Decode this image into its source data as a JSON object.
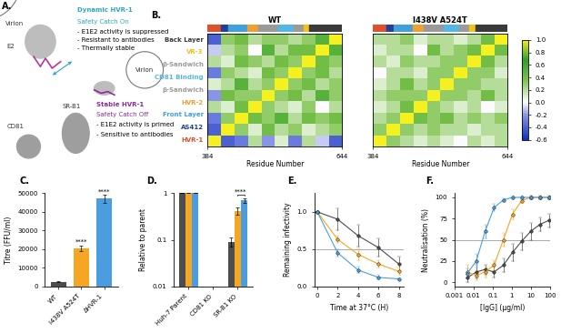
{
  "chart_data": [
    {
      "panel": "A.",
      "type": "diagram",
      "texts": [
        {
          "text": "Virion",
          "color": "#333333"
        },
        {
          "text": "E2",
          "color": "#333333"
        },
        {
          "text": "Dynamic HVR-1",
          "color": "#2aa7c9"
        },
        {
          "text": "Safety Catch On",
          "color": "#2aa7c9"
        },
        {
          "text": "- E1E2 activity is suppressed",
          "color": "#000000"
        },
        {
          "text": "- Resistant to antibodies",
          "color": "#000000"
        },
        {
          "text": "- Thermally stable",
          "color": "#000000"
        },
        {
          "text": "Virion",
          "color": "#333333"
        },
        {
          "text": "SR-B1",
          "color": "#333333"
        },
        {
          "text": "CD81",
          "color": "#333333"
        },
        {
          "text": "Stable HVR-1",
          "color": "#8e2a9e"
        },
        {
          "text": "Safety Catch Off",
          "color": "#8e2a9e"
        },
        {
          "text": "- E1E2 activity is primed",
          "color": "#000000"
        },
        {
          "text": "- Sensitive to antibodies",
          "color": "#000000"
        }
      ]
    },
    {
      "panel": "B.",
      "type": "heatmap",
      "xlabel": "Residue Number",
      "xlim": [
        384,
        644
      ],
      "xticks": [
        384,
        644
      ],
      "ylim": [
        384,
        644
      ],
      "tick_labels": "x",
      "regions": [
        {
          "name": "HVR-1",
          "color": "#e0502a",
          "start": 384,
          "end": 410
        },
        {
          "name": "AS412",
          "color": "#1f3f9a",
          "start": 410,
          "end": 424
        },
        {
          "name": "Front Layer",
          "color": "#3fa0de",
          "start": 424,
          "end": 460
        },
        {
          "name": "HVR-2",
          "color": "#f0a030",
          "start": 460,
          "end": 481
        },
        {
          "name": "β-Sandwich",
          "color": "#9a9a9a",
          "start": 481,
          "end": 520
        },
        {
          "name": "CD81 Binding",
          "color": "#52b6e6",
          "start": 520,
          "end": 551
        },
        {
          "name": "β-Sandwich",
          "color": "#9a9a9a",
          "start": 551,
          "end": 570
        },
        {
          "name": "VR-3",
          "color": "#f2c21a",
          "start": 570,
          "end": 581
        },
        {
          "name": "Back Layer",
          "color": "#3a3a3a",
          "start": 581,
          "end": 644
        }
      ],
      "maps": [
        {
          "title": "WT",
          "cells": [
            [
              1.0,
              -0.4,
              -0.3,
              0.2,
              -0.2,
              0.1,
              -0.3,
              0.2,
              -0.1,
              -0.4
            ],
            [
              -0.4,
              1.0,
              0.3,
              0.1,
              0.4,
              0.2,
              0.3,
              0.1,
              0.2,
              0.3
            ],
            [
              -0.3,
              0.3,
              1.0,
              0.4,
              0.3,
              0.5,
              0.2,
              0.4,
              0.3,
              0.4
            ],
            [
              0.2,
              0.1,
              0.4,
              1.0,
              0.3,
              0.2,
              0.1,
              0.3,
              0.0,
              0.2
            ],
            [
              -0.2,
              0.4,
              0.3,
              0.3,
              1.0,
              0.3,
              0.4,
              0.2,
              0.5,
              0.3
            ],
            [
              0.1,
              0.2,
              0.5,
              0.2,
              0.3,
              1.0,
              0.3,
              0.4,
              0.2,
              0.3
            ],
            [
              -0.3,
              0.3,
              0.2,
              0.1,
              0.4,
              0.3,
              1.0,
              0.3,
              0.4,
              0.2
            ],
            [
              0.2,
              0.1,
              0.4,
              0.3,
              0.2,
              0.4,
              0.3,
              1.0,
              0.4,
              0.3
            ],
            [
              -0.1,
              0.2,
              0.3,
              0.0,
              0.5,
              0.2,
              0.4,
              0.4,
              1.0,
              0.5
            ],
            [
              -0.4,
              0.3,
              0.4,
              0.2,
              0.3,
              0.3,
              0.2,
              0.3,
              0.5,
              1.0
            ]
          ]
        },
        {
          "title": "I438V A524T",
          "cells": [
            [
              1.0,
              0.3,
              0.2,
              0.1,
              0.2,
              0.1,
              0.0,
              0.2,
              0.1,
              0.2
            ],
            [
              0.3,
              1.0,
              0.3,
              0.2,
              0.3,
              0.2,
              0.2,
              0.1,
              0.2,
              0.2
            ],
            [
              0.2,
              0.3,
              1.0,
              0.4,
              0.3,
              0.4,
              0.2,
              0.3,
              0.2,
              0.3
            ],
            [
              0.1,
              0.2,
              0.4,
              1.0,
              0.3,
              0.2,
              0.1,
              0.2,
              0.0,
              0.1
            ],
            [
              0.2,
              0.3,
              0.3,
              0.3,
              1.0,
              0.3,
              0.3,
              0.2,
              0.4,
              0.2
            ],
            [
              0.1,
              0.2,
              0.4,
              0.2,
              0.3,
              1.0,
              0.3,
              0.3,
              0.2,
              0.2
            ],
            [
              0.0,
              0.2,
              0.2,
              0.1,
              0.3,
              0.3,
              1.0,
              0.3,
              0.3,
              0.1
            ],
            [
              0.2,
              0.1,
              0.3,
              0.2,
              0.2,
              0.3,
              0.3,
              1.0,
              0.4,
              0.2
            ],
            [
              0.1,
              0.2,
              0.2,
              0.0,
              0.4,
              0.2,
              0.3,
              0.4,
              1.0,
              0.4
            ],
            [
              0.2,
              0.2,
              0.3,
              0.1,
              0.2,
              0.2,
              0.1,
              0.2,
              0.4,
              1.0
            ]
          ]
        }
      ],
      "colorbar": {
        "range": [
          -0.6,
          1.0
        ],
        "ticks": [
          -0.6,
          -0.4,
          -0.2,
          {
            "value": 0,
            "label": "0.0"
          },
          0.2,
          0.4,
          0.6,
          0.8,
          1.0
        ]
      }
    },
    {
      "panel": "C.",
      "type": "bar",
      "ylabel": "Titre (FFU/ml)",
      "categories": [
        "WT",
        "I438V A524T",
        "ΔHVR-1"
      ],
      "values": [
        2500,
        20500,
        47000
      ],
      "errors": [
        300,
        1500,
        2000
      ],
      "colors": [
        "#4d4d4d",
        "#f5a623",
        "#4a9ee0"
      ],
      "ylim": [
        0,
        50000
      ],
      "yticks": [
        0,
        10000,
        20000,
        30000,
        40000,
        50000
      ],
      "annotations": [
        {
          "category": "I438V A524T",
          "text": "****"
        },
        {
          "category": "ΔHVR-1",
          "text": "****"
        }
      ]
    },
    {
      "panel": "D.",
      "type": "bar",
      "log": "y",
      "ylabel": "Relative to parent",
      "categories": [
        "Huh-7 Parent",
        "CD81 KO",
        "SR-B1 KO"
      ],
      "series": [
        {
          "name": "WT",
          "color": "#4d4d4d",
          "values": [
            1,
            null,
            0.09
          ],
          "errors": [
            0,
            null,
            0.02
          ]
        },
        {
          "name": "I438V A524T",
          "color": "#f5a623",
          "values": [
            1,
            null,
            0.42
          ],
          "errors": [
            0,
            null,
            0.08
          ]
        },
        {
          "name": "ΔHVR-1",
          "color": "#4a9ee0",
          "values": [
            1,
            null,
            0.7
          ],
          "errors": [
            0,
            null,
            0.08
          ]
        }
      ],
      "ylim": [
        0.01,
        1
      ],
      "yticks": [
        0.01,
        0.1,
        1
      ],
      "bracket": {
        "category": "SR-B1 KO",
        "from": "I438V A524T",
        "to": "ΔHVR-1",
        "text": "****"
      }
    },
    {
      "panel": "E.",
      "type": "line",
      "marker": "o",
      "xlabel": "Time at 37°C (H)",
      "ylabel": "Remaining infectivity",
      "x": [
        0,
        2,
        4,
        6,
        8
      ],
      "series": [
        {
          "name": "WT",
          "color": "#4d4d4d",
          "values": [
            1.0,
            0.9,
            0.68,
            0.52,
            0.3
          ],
          "errors": [
            0,
            0.15,
            0.15,
            0.12,
            0.1
          ]
        },
        {
          "name": "I438V A524T",
          "color": "#f5a623",
          "values": [
            1.0,
            0.63,
            0.43,
            0.3,
            0.2
          ],
          "errors": [
            0,
            0.05,
            0.08,
            0.05,
            0.05
          ]
        },
        {
          "name": "ΔHVR-1",
          "color": "#4a9ee0",
          "values": [
            1.0,
            0.45,
            0.22,
            0.12,
            0.1
          ],
          "errors": [
            0,
            0.05,
            0.04,
            0.03,
            0.02
          ]
        }
      ],
      "xlim": [
        -0.3,
        8.5
      ],
      "xticks": [
        0,
        2,
        4,
        6,
        8
      ],
      "ylim": [
        0,
        1.25
      ],
      "yticks": [
        {
          "value": 0,
          "label": "0.0"
        },
        0.5,
        1.0
      ],
      "hline": 0.5
    },
    {
      "panel": "F.",
      "type": "line",
      "marker": "o",
      "log": "x",
      "xlabel": "[IgG] (μg/ml)",
      "ylabel": "Neutralisation (%)",
      "x": [
        0.0046,
        0.014,
        0.041,
        0.12,
        0.37,
        1.1,
        3.3,
        10,
        30,
        90
      ],
      "series": [
        {
          "name": "WT",
          "color": "#4d4d4d",
          "values": [
            5,
            12,
            15,
            12,
            20,
            35,
            48,
            60,
            68,
            73
          ],
          "errors": [
            5,
            8,
            6,
            6,
            8,
            10,
            10,
            10,
            8,
            8
          ]
        },
        {
          "name": "I438V A524T",
          "color": "#f5a623",
          "values": [
            12,
            8,
            12,
            20,
            50,
            80,
            96,
            100,
            100,
            100
          ],
          "errors": [
            8,
            6,
            6,
            6,
            8,
            6,
            3,
            2,
            2,
            2
          ]
        },
        {
          "name": "ΔHVR-1",
          "color": "#4a9ee0",
          "values": [
            10,
            25,
            60,
            88,
            97,
            100,
            100,
            100,
            100,
            100
          ],
          "errors": [
            6,
            8,
            8,
            4,
            2,
            2,
            2,
            2,
            2,
            2
          ]
        }
      ],
      "xlim": [
        0.001,
        100
      ],
      "xticks": [
        0.001,
        0.01,
        0.1,
        1,
        10,
        100
      ],
      "ylim": [
        -5,
        105
      ],
      "yticks": [
        0,
        25,
        50,
        75,
        100
      ],
      "hline": 50
    }
  ]
}
